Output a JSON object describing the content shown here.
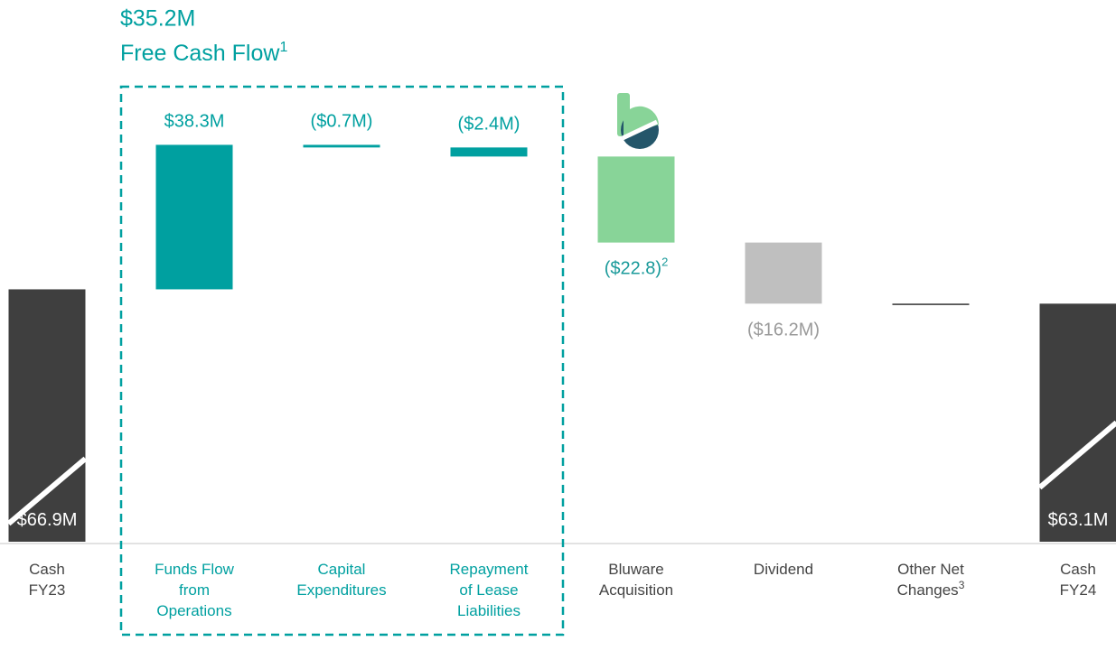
{
  "chart_data": {
    "type": "waterfall",
    "annotation": {
      "value_label": "$35.2M",
      "text": "Free Cash Flow",
      "note": "1"
    },
    "categories": [
      [
        "Cash",
        "FY23"
      ],
      [
        "Funds Flow",
        "from",
        "Operations"
      ],
      [
        "Capital",
        "Expenditures"
      ],
      [
        "Repayment",
        "of Lease",
        "Liabilities"
      ],
      [
        "Bluware",
        "Acquisition"
      ],
      [
        "Dividend"
      ],
      [
        "Other Net",
        "Changes"
      ],
      [
        "Cash",
        "FY24"
      ]
    ],
    "category_notes": [
      null,
      null,
      null,
      null,
      null,
      null,
      "3",
      null
    ],
    "values": [
      66.9,
      38.3,
      -0.7,
      -2.4,
      -22.8,
      -16.2,
      0,
      63.1
    ],
    "value_labels": [
      "$66.9M",
      "$38.3M",
      "($0.7M)",
      "($2.4M)",
      "($22.8)",
      "($16.2M)",
      null,
      "$63.1M"
    ],
    "value_label_notes": [
      null,
      null,
      null,
      null,
      "2",
      null,
      null,
      null
    ],
    "is_total": [
      true,
      false,
      false,
      false,
      false,
      false,
      false,
      true
    ],
    "colors": [
      "#3f3f3f",
      "#00a0a0",
      "#00a0a0",
      "#00a0a0",
      "#88d498",
      "#bfbfbf",
      "#333333",
      "#3f3f3f"
    ],
    "ylim": [
      0,
      140
    ]
  }
}
